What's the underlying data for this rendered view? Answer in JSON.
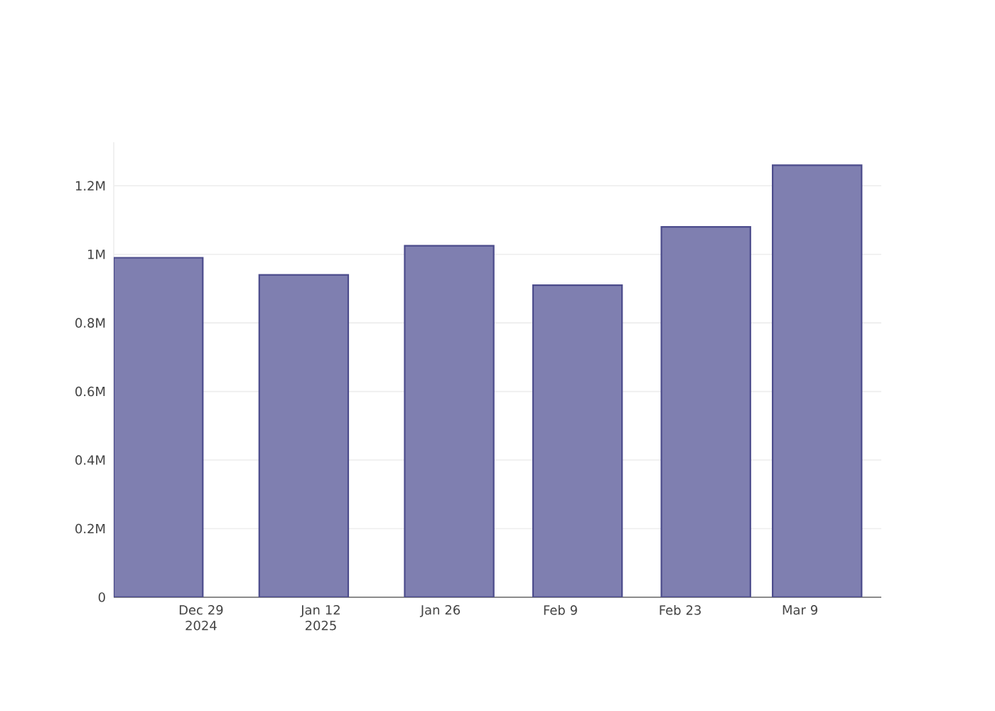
{
  "chart_data": {
    "type": "bar",
    "x": [
      "2024-12-24",
      "2025-01-10",
      "2025-01-27",
      "2025-02-11",
      "2025-02-26",
      "2025-03-11"
    ],
    "values": [
      990000,
      940000,
      1025000,
      910000,
      1080000,
      1260000
    ],
    "color": "#7f7fb0",
    "xlim": [
      "2024-12-18T19:00",
      "2025-03-18T12:00"
    ],
    "xticks": [
      {
        "value": "2024-12-29",
        "label": "Dec 29 2024"
      },
      {
        "value": "2025-01-12",
        "label": "Jan 12 2025"
      },
      {
        "value": "2025-01-26",
        "label": "Jan 26"
      },
      {
        "value": "2025-02-09",
        "label": "Feb 9"
      },
      {
        "value": "2025-02-23",
        "label": "Feb 23"
      },
      {
        "value": "2025-03-09",
        "label": "Mar 9"
      }
    ],
    "ylim": [
      0,
      1327000
    ],
    "yticks": [
      0,
      {
        "value": 200000,
        "label": "0.2M"
      },
      {
        "value": 400000,
        "label": "0.4M"
      },
      {
        "value": 600000,
        "label": "0.6M"
      },
      {
        "value": 800000,
        "label": "0.8M"
      },
      {
        "value": 1000000,
        "label": "1M"
      },
      {
        "value": 1200000,
        "label": "1.2M"
      }
    ],
    "grid": "y"
  }
}
